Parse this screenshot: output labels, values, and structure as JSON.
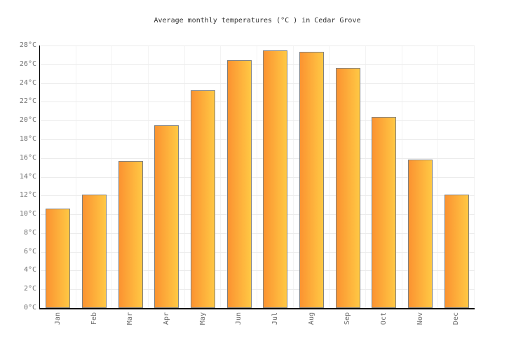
{
  "chart_data": {
    "type": "bar",
    "title": "Average monthly temperatures (°C ) in Cedar Grove",
    "categories": [
      "Jan",
      "Feb",
      "Mar",
      "Apr",
      "May",
      "Jun",
      "Jul",
      "Aug",
      "Sep",
      "Oct",
      "Nov",
      "Dec"
    ],
    "values": [
      10.6,
      12.1,
      15.7,
      19.5,
      23.2,
      26.4,
      27.5,
      27.3,
      25.6,
      20.4,
      15.8,
      12.1
    ],
    "unit": "°C",
    "xlabel": "",
    "ylabel": "",
    "ylim": [
      0,
      28
    ],
    "ytick_step": 2,
    "ytick_values": [
      0,
      2,
      4,
      6,
      8,
      10,
      12,
      14,
      16,
      18,
      20,
      22,
      24,
      26,
      28
    ],
    "ytick_labels": [
      "0°C",
      "2°C",
      "4°C",
      "6°C",
      "8°C",
      "10°C",
      "12°C",
      "14°C",
      "16°C",
      "18°C",
      "20°C",
      "22°C",
      "24°C",
      "26°C",
      "28°C"
    ],
    "grid": true,
    "legend": false,
    "colors": {
      "bar_gradient_left": "#fb9331",
      "bar_gradient_right": "#ffc844",
      "bar_border": "#808080",
      "axis": "#000000",
      "gridline_h": "#ececec",
      "gridline_v": "#f3f3f3",
      "tick_label": "#707070",
      "title": "#333333",
      "background": "#ffffff"
    }
  }
}
